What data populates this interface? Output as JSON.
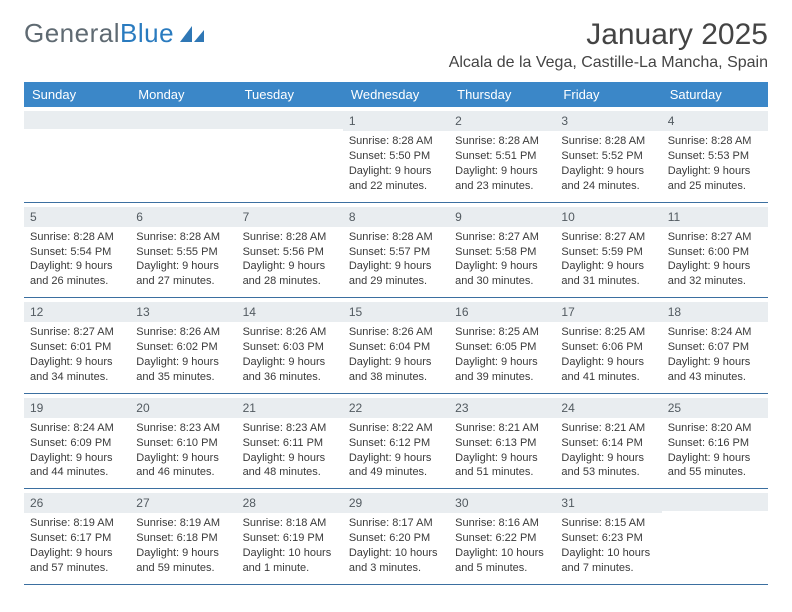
{
  "logo": {
    "text1": "General",
    "text2": "Blue"
  },
  "title": "January 2025",
  "subtitle": "Alcala de la Vega, Castille-La Mancha, Spain",
  "colors": {
    "header_bg": "#3b87c8",
    "header_text": "#ffffff",
    "daynum_bg": "#e9edf0",
    "border": "#3b6fa0",
    "logo_gray": "#5f6a72",
    "logo_blue": "#2a7bbf"
  },
  "day_names": [
    "Sunday",
    "Monday",
    "Tuesday",
    "Wednesday",
    "Thursday",
    "Friday",
    "Saturday"
  ],
  "weeks": [
    [
      {
        "n": "",
        "sr": "",
        "ss": "",
        "dl": ""
      },
      {
        "n": "",
        "sr": "",
        "ss": "",
        "dl": ""
      },
      {
        "n": "",
        "sr": "",
        "ss": "",
        "dl": ""
      },
      {
        "n": "1",
        "sr": "Sunrise: 8:28 AM",
        "ss": "Sunset: 5:50 PM",
        "dl": "Daylight: 9 hours and 22 minutes."
      },
      {
        "n": "2",
        "sr": "Sunrise: 8:28 AM",
        "ss": "Sunset: 5:51 PM",
        "dl": "Daylight: 9 hours and 23 minutes."
      },
      {
        "n": "3",
        "sr": "Sunrise: 8:28 AM",
        "ss": "Sunset: 5:52 PM",
        "dl": "Daylight: 9 hours and 24 minutes."
      },
      {
        "n": "4",
        "sr": "Sunrise: 8:28 AM",
        "ss": "Sunset: 5:53 PM",
        "dl": "Daylight: 9 hours and 25 minutes."
      }
    ],
    [
      {
        "n": "5",
        "sr": "Sunrise: 8:28 AM",
        "ss": "Sunset: 5:54 PM",
        "dl": "Daylight: 9 hours and 26 minutes."
      },
      {
        "n": "6",
        "sr": "Sunrise: 8:28 AM",
        "ss": "Sunset: 5:55 PM",
        "dl": "Daylight: 9 hours and 27 minutes."
      },
      {
        "n": "7",
        "sr": "Sunrise: 8:28 AM",
        "ss": "Sunset: 5:56 PM",
        "dl": "Daylight: 9 hours and 28 minutes."
      },
      {
        "n": "8",
        "sr": "Sunrise: 8:28 AM",
        "ss": "Sunset: 5:57 PM",
        "dl": "Daylight: 9 hours and 29 minutes."
      },
      {
        "n": "9",
        "sr": "Sunrise: 8:27 AM",
        "ss": "Sunset: 5:58 PM",
        "dl": "Daylight: 9 hours and 30 minutes."
      },
      {
        "n": "10",
        "sr": "Sunrise: 8:27 AM",
        "ss": "Sunset: 5:59 PM",
        "dl": "Daylight: 9 hours and 31 minutes."
      },
      {
        "n": "11",
        "sr": "Sunrise: 8:27 AM",
        "ss": "Sunset: 6:00 PM",
        "dl": "Daylight: 9 hours and 32 minutes."
      }
    ],
    [
      {
        "n": "12",
        "sr": "Sunrise: 8:27 AM",
        "ss": "Sunset: 6:01 PM",
        "dl": "Daylight: 9 hours and 34 minutes."
      },
      {
        "n": "13",
        "sr": "Sunrise: 8:26 AM",
        "ss": "Sunset: 6:02 PM",
        "dl": "Daylight: 9 hours and 35 minutes."
      },
      {
        "n": "14",
        "sr": "Sunrise: 8:26 AM",
        "ss": "Sunset: 6:03 PM",
        "dl": "Daylight: 9 hours and 36 minutes."
      },
      {
        "n": "15",
        "sr": "Sunrise: 8:26 AM",
        "ss": "Sunset: 6:04 PM",
        "dl": "Daylight: 9 hours and 38 minutes."
      },
      {
        "n": "16",
        "sr": "Sunrise: 8:25 AM",
        "ss": "Sunset: 6:05 PM",
        "dl": "Daylight: 9 hours and 39 minutes."
      },
      {
        "n": "17",
        "sr": "Sunrise: 8:25 AM",
        "ss": "Sunset: 6:06 PM",
        "dl": "Daylight: 9 hours and 41 minutes."
      },
      {
        "n": "18",
        "sr": "Sunrise: 8:24 AM",
        "ss": "Sunset: 6:07 PM",
        "dl": "Daylight: 9 hours and 43 minutes."
      }
    ],
    [
      {
        "n": "19",
        "sr": "Sunrise: 8:24 AM",
        "ss": "Sunset: 6:09 PM",
        "dl": "Daylight: 9 hours and 44 minutes."
      },
      {
        "n": "20",
        "sr": "Sunrise: 8:23 AM",
        "ss": "Sunset: 6:10 PM",
        "dl": "Daylight: 9 hours and 46 minutes."
      },
      {
        "n": "21",
        "sr": "Sunrise: 8:23 AM",
        "ss": "Sunset: 6:11 PM",
        "dl": "Daylight: 9 hours and 48 minutes."
      },
      {
        "n": "22",
        "sr": "Sunrise: 8:22 AM",
        "ss": "Sunset: 6:12 PM",
        "dl": "Daylight: 9 hours and 49 minutes."
      },
      {
        "n": "23",
        "sr": "Sunrise: 8:21 AM",
        "ss": "Sunset: 6:13 PM",
        "dl": "Daylight: 9 hours and 51 minutes."
      },
      {
        "n": "24",
        "sr": "Sunrise: 8:21 AM",
        "ss": "Sunset: 6:14 PM",
        "dl": "Daylight: 9 hours and 53 minutes."
      },
      {
        "n": "25",
        "sr": "Sunrise: 8:20 AM",
        "ss": "Sunset: 6:16 PM",
        "dl": "Daylight: 9 hours and 55 minutes."
      }
    ],
    [
      {
        "n": "26",
        "sr": "Sunrise: 8:19 AM",
        "ss": "Sunset: 6:17 PM",
        "dl": "Daylight: 9 hours and 57 minutes."
      },
      {
        "n": "27",
        "sr": "Sunrise: 8:19 AM",
        "ss": "Sunset: 6:18 PM",
        "dl": "Daylight: 9 hours and 59 minutes."
      },
      {
        "n": "28",
        "sr": "Sunrise: 8:18 AM",
        "ss": "Sunset: 6:19 PM",
        "dl": "Daylight: 10 hours and 1 minute."
      },
      {
        "n": "29",
        "sr": "Sunrise: 8:17 AM",
        "ss": "Sunset: 6:20 PM",
        "dl": "Daylight: 10 hours and 3 minutes."
      },
      {
        "n": "30",
        "sr": "Sunrise: 8:16 AM",
        "ss": "Sunset: 6:22 PM",
        "dl": "Daylight: 10 hours and 5 minutes."
      },
      {
        "n": "31",
        "sr": "Sunrise: 8:15 AM",
        "ss": "Sunset: 6:23 PM",
        "dl": "Daylight: 10 hours and 7 minutes."
      },
      {
        "n": "",
        "sr": "",
        "ss": "",
        "dl": ""
      }
    ]
  ]
}
